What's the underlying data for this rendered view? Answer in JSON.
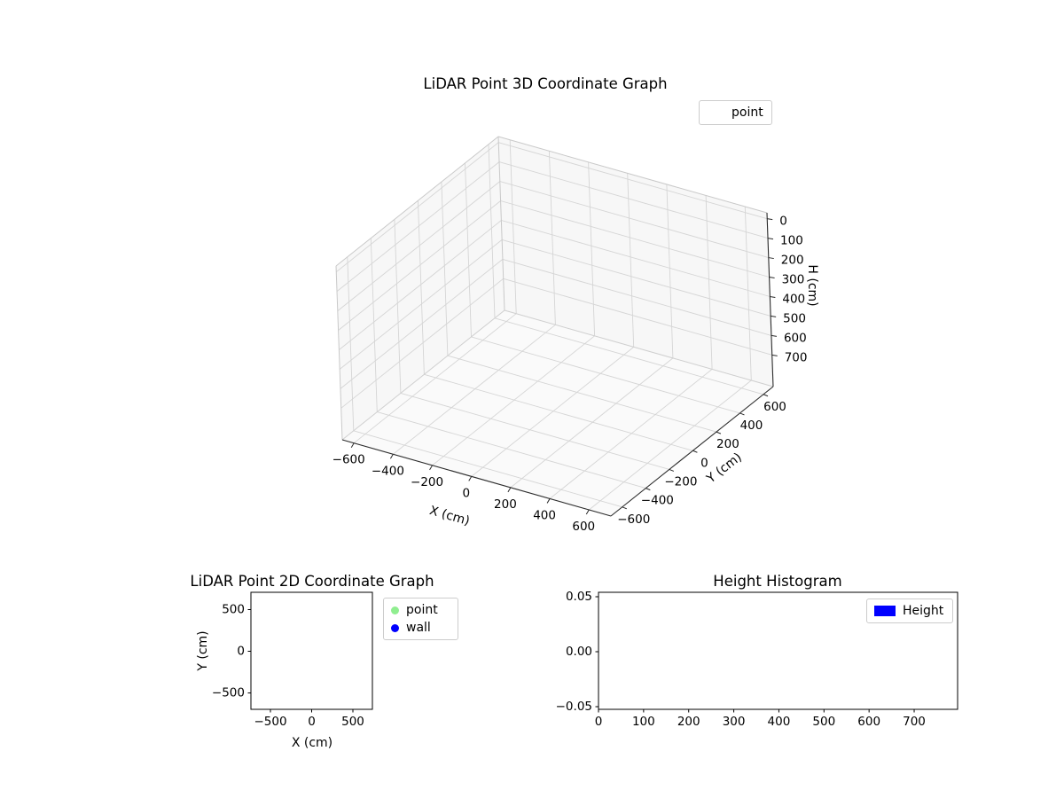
{
  "figure": {
    "background": "#ffffff"
  },
  "chart_data": [
    {
      "id": "plot3d",
      "type": "scatter3d",
      "title": "LiDAR Point 3D Coordinate Graph",
      "xlabel": "X (cm)",
      "ylabel": "Y (cm)",
      "zlabel": "H (cm)",
      "x_ticks": [
        -600,
        -400,
        -200,
        0,
        200,
        400,
        600
      ],
      "y_ticks": [
        600,
        400,
        200,
        0,
        -200,
        -400,
        -600
      ],
      "z_ticks": [
        0,
        100,
        200,
        300,
        400,
        500,
        600,
        700
      ],
      "z_axis_inverted": true,
      "grid": true,
      "pane_color": "#f0f0f0",
      "grid_color": "#d5d5d5",
      "legend": {
        "position": "upper-right-outside",
        "entries": [
          {
            "label": "point",
            "marker": "none"
          }
        ]
      },
      "series": [
        {
          "name": "point",
          "points": []
        }
      ]
    },
    {
      "id": "plot2d",
      "type": "scatter",
      "title": "LiDAR Point 2D Coordinate Graph",
      "xlabel": "X (cm)",
      "ylabel": "Y (cm)",
      "x_ticks": [
        -500,
        0,
        500
      ],
      "y_ticks": [
        500,
        0,
        -500
      ],
      "grid": false,
      "legend": {
        "position": "outside-right",
        "entries": [
          {
            "label": "point",
            "color": "#90ee90"
          },
          {
            "label": "wall",
            "color": "#0000ff"
          }
        ]
      },
      "series": [
        {
          "name": "point",
          "color": "#90ee90",
          "points": []
        },
        {
          "name": "wall",
          "color": "#0000ff",
          "points": []
        }
      ]
    },
    {
      "id": "hist",
      "type": "bar",
      "title": "Height Histogram",
      "xlabel": "",
      "ylabel": "",
      "x_ticks": [
        0,
        100,
        200,
        300,
        400,
        500,
        600,
        700
      ],
      "y_ticks": [
        0.05,
        0,
        -0.05
      ],
      "grid": false,
      "legend": {
        "position": "upper-right-inside",
        "entries": [
          {
            "label": "Height",
            "color": "#0000ff"
          }
        ]
      },
      "values": []
    }
  ]
}
